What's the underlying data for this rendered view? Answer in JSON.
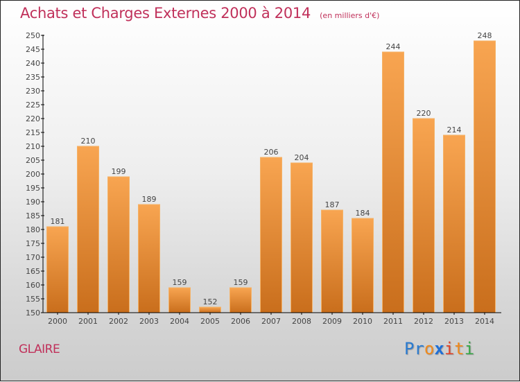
{
  "header": {
    "title": "Achats et Charges Externes 2000 à 2014",
    "subtitle": "(en milliers d'€)"
  },
  "footer": {
    "place": "GLAIRE",
    "logo": {
      "letters": [
        {
          "char": "P",
          "color": "#2a7bd0"
        },
        {
          "char": "r",
          "color": "#2a7bd0"
        },
        {
          "char": "o",
          "color": "#f08a1c"
        },
        {
          "char": "x",
          "color": "#1f6fd6"
        },
        {
          "char": "i",
          "color": "#e0452a"
        },
        {
          "char": "t",
          "color": "#f08a1c"
        },
        {
          "char": "i",
          "color": "#3aa84a"
        }
      ]
    }
  },
  "colors": {
    "bar_top": "#f8a551",
    "bar_bottom": "#c96e1c",
    "bar_edge": "#f5b266",
    "title": "#c0305a"
  },
  "chart_data": {
    "type": "bar",
    "title": "Achats et Charges Externes 2000 à 2014",
    "subtitle": "(en milliers d'€)",
    "xlabel": "",
    "ylabel": "",
    "categories": [
      "2000",
      "2001",
      "2002",
      "2003",
      "2004",
      "2005",
      "2006",
      "2007",
      "2008",
      "2009",
      "2010",
      "2011",
      "2012",
      "2013",
      "2014"
    ],
    "values": [
      181,
      210,
      199,
      189,
      159,
      152,
      159,
      206,
      204,
      187,
      184,
      244,
      220,
      214,
      248
    ],
    "ylim": [
      150,
      250
    ],
    "yticks": [
      150,
      155,
      160,
      165,
      170,
      175,
      180,
      185,
      190,
      195,
      200,
      205,
      210,
      215,
      220,
      225,
      230,
      235,
      240,
      245,
      250
    ],
    "grid": false,
    "legend": "none",
    "data_labels": true
  }
}
